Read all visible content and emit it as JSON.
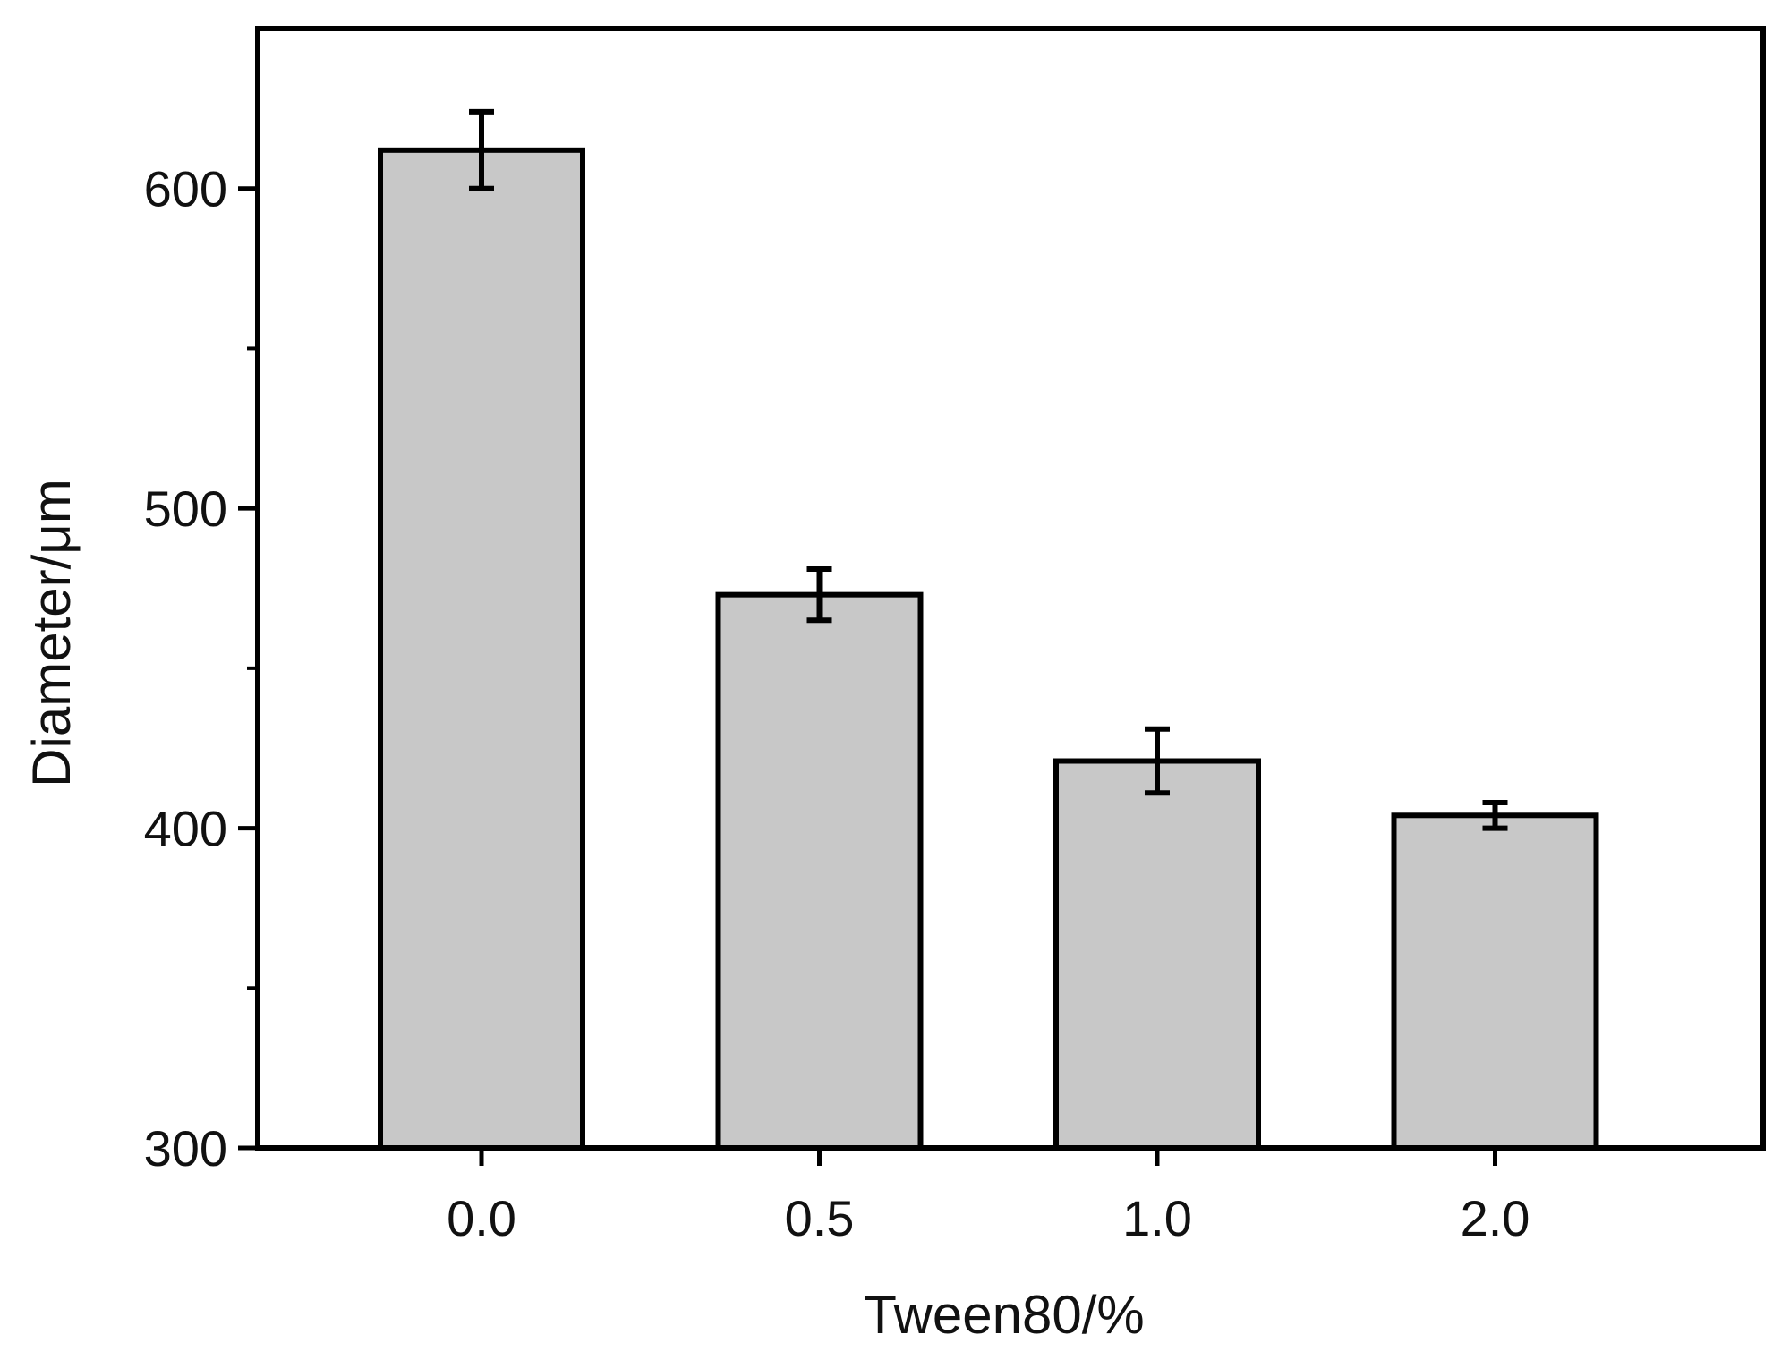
{
  "chart_data": {
    "type": "bar",
    "title": "",
    "xlabel": "Tween80/%",
    "ylabel": "Diameter/μm",
    "categories": [
      "0.0",
      "0.5",
      "1.0",
      "2.0"
    ],
    "values": [
      612,
      473,
      421,
      404
    ],
    "errors": [
      12,
      8,
      10,
      4
    ],
    "ylim": [
      300,
      650
    ],
    "yticks": [
      300,
      400,
      500,
      600
    ],
    "yticks_minor": [
      350,
      450,
      550
    ],
    "grid": false,
    "legend": "none",
    "colors": {
      "bar_fill": "#c8c8c8",
      "bar_edge": "#000000",
      "axis": "#000000"
    }
  }
}
